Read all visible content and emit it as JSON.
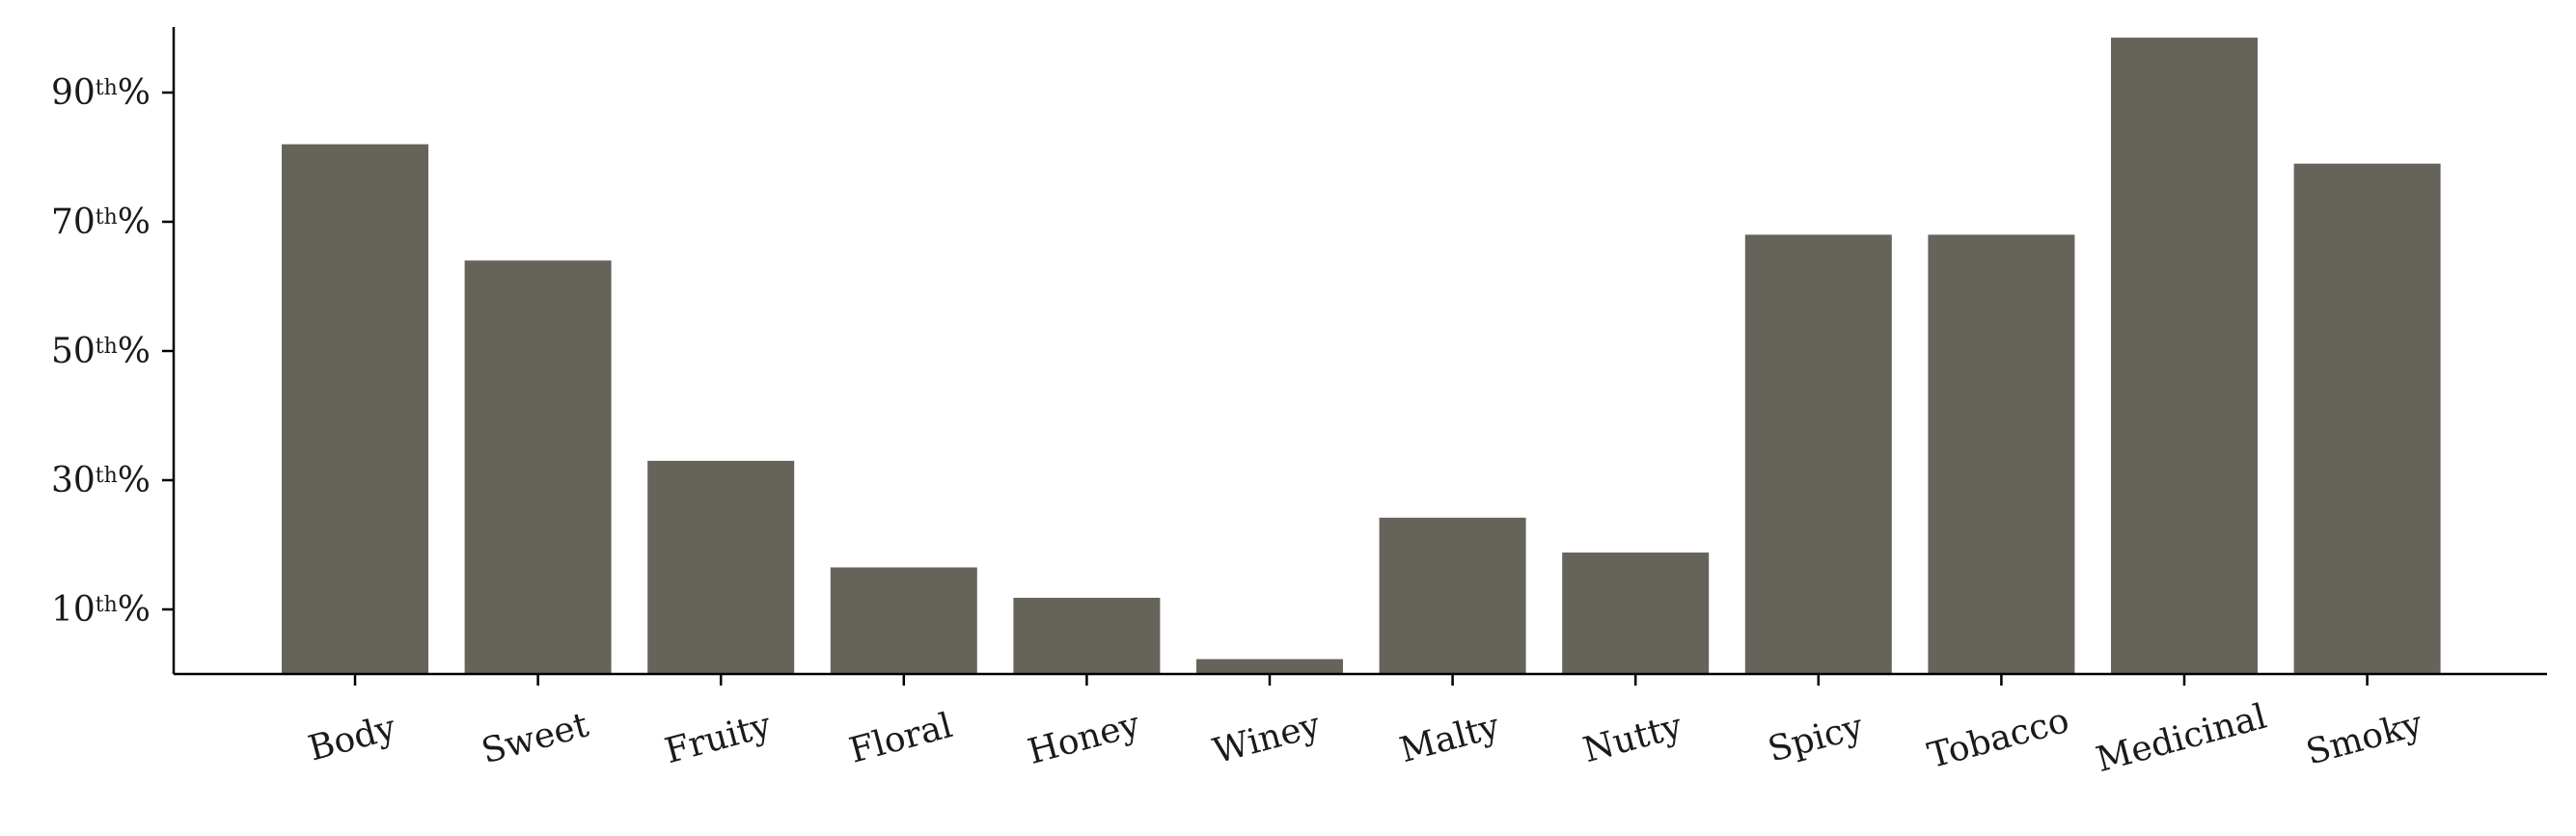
{
  "chart_data": {
    "type": "bar",
    "categories": [
      "Body",
      "Sweet",
      "Fruity",
      "Floral",
      "Honey",
      "Winey",
      "Malty",
      "Nutty",
      "Spicy",
      "Tobacco",
      "Medicinal",
      "Smoky"
    ],
    "values": [
      82,
      64,
      33,
      16.5,
      11.8,
      2.3,
      24.2,
      18.8,
      68,
      68,
      98.5,
      79
    ],
    "ylim": [
      0,
      100
    ],
    "yticks": [
      {
        "value": 10,
        "num": "10",
        "sup": "th",
        "suffix": "%"
      },
      {
        "value": 30,
        "num": "30",
        "sup": "th",
        "suffix": "%"
      },
      {
        "value": 50,
        "num": "50",
        "sup": "th",
        "suffix": "%"
      },
      {
        "value": 70,
        "num": "70",
        "sup": "th",
        "suffix": "%"
      },
      {
        "value": 90,
        "num": "90",
        "sup": "th",
        "suffix": "%"
      }
    ],
    "bar_color": "#66635a",
    "grid": false,
    "xlabel": "",
    "ylabel": "",
    "title": ""
  }
}
